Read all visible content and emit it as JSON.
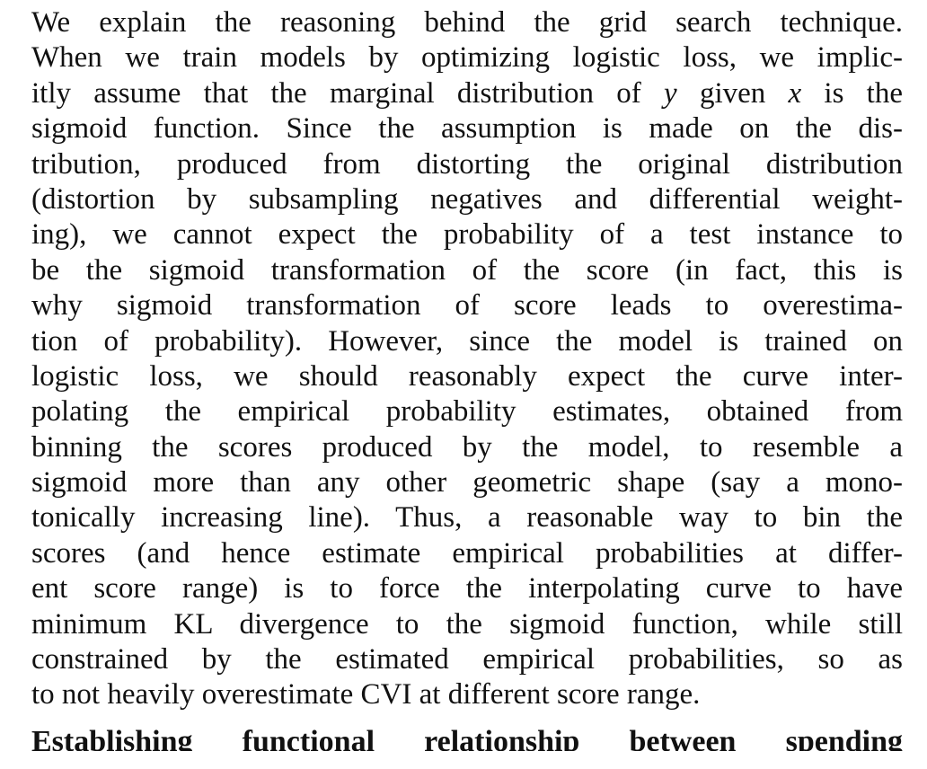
{
  "paragraph": {
    "lines": [
      "We explain the reasoning behind the grid search technique.",
      "When we train models by optimizing logistic loss, we implic-",
      "itly assume that the marginal distribution of y given x is the",
      "sigmoid function. Since the assumption is made on the dis-",
      "tribution, produced from distorting the original distribution",
      "(distortion by subsampling negatives and differential weight-",
      "ing), we cannot expect the probability of a test instance to",
      "be the sigmoid transformation of the score (in fact, this is",
      "why sigmoid transformation of score leads to overestima-",
      "tion of probability). However, since the model is trained on",
      "logistic loss, we should reasonably expect the curve inter-",
      "polating the empirical probability estimates, obtained from",
      "binning the scores produced by the model, to resemble a",
      "sigmoid more than any other geometric shape (say a mono-",
      "tonically increasing line). Thus, a reasonable way to bin the",
      "scores (and hence estimate empirical probabilities at differ-",
      "ent score range) is to force the interpolating curve to have",
      "minimum KL divergence to the sigmoid function, while still",
      "constrained by the estimated empirical probabilities, so as",
      "to not heavily overestimate CVI at different score range."
    ],
    "line3_parts": {
      "a": "itly assume that the marginal distribution of ",
      "var_y": "y",
      "b": " given ",
      "var_x": "x",
      "c": " is the"
    }
  },
  "next_heading": "Establishing functional relationship between spending"
}
